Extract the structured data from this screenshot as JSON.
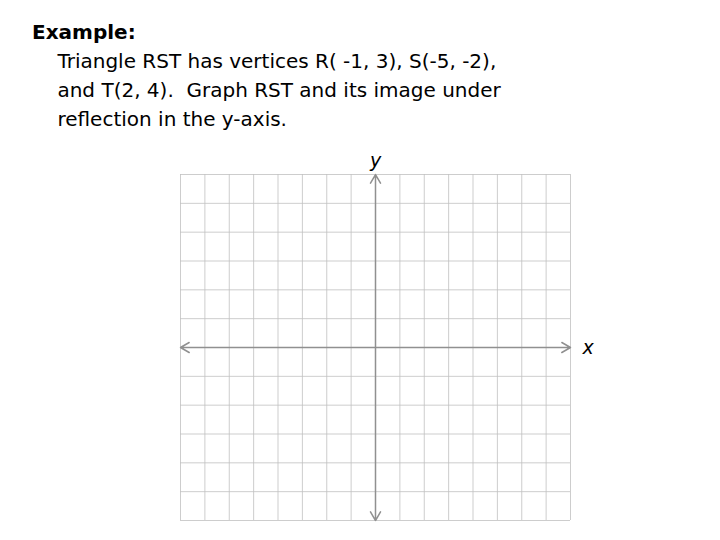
{
  "chart_data": {
    "type": "coordinate_grid",
    "title": "Example:",
    "annotations": [
      "    Triangle RST has vertices R( -1, 3), S(-5, -2),",
      "    and T(2, 4).  Graph RST and its image under",
      "    reflection in the y-axis."
    ],
    "xlabel": "x",
    "ylabel": "y",
    "xlim": [
      -8,
      8
    ],
    "ylim": [
      -6,
      6
    ],
    "xticks": [
      -8,
      -7,
      -6,
      -5,
      -4,
      -3,
      -2,
      -1,
      0,
      1,
      2,
      3,
      4,
      5,
      6,
      7,
      8
    ],
    "yticks": [
      -6,
      -5,
      -4,
      -3,
      -2,
      -1,
      0,
      1,
      2,
      3,
      4,
      5,
      6
    ],
    "grid": true,
    "tick_labels": false
  }
}
